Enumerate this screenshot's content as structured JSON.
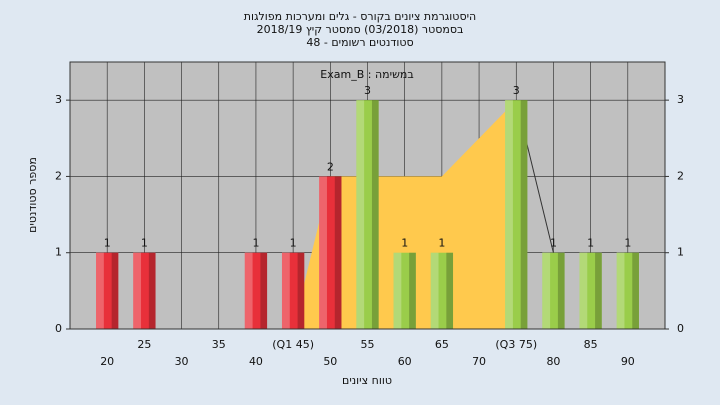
{
  "chart_data": {
    "type": "bar",
    "title_lines": [
      "היסטוגרמת ציונים בקורס - גלים ומערכות מפולגות",
      "בסמסטר (03/2018) סמסטר קיץ 2018/19",
      "סטודנטים רשומים - 48"
    ],
    "annotation": "במשימה : Exam_B",
    "xlabel": "טווח ציונים",
    "ylabel": "מספר סטודנטים",
    "x": [
      20,
      25,
      30,
      35,
      40,
      45,
      50,
      55,
      60,
      65,
      70,
      75,
      80,
      85,
      90
    ],
    "values": [
      1,
      1,
      0,
      0,
      1,
      1,
      2,
      3,
      1,
      1,
      0,
      3,
      1,
      1,
      1
    ],
    "colors": [
      "#e8303a",
      "#e8303a",
      "#e8303a",
      "#e8303a",
      "#e8303a",
      "#e8303a",
      "#e8303a",
      "#9acd4a",
      "#9acd4a",
      "#9acd4a",
      "#9acd4a",
      "#9acd4a",
      "#9acd4a",
      "#9acd4a",
      "#9acd4a"
    ],
    "overlays": [
      {
        "type": "area",
        "color": "#ffc94d",
        "x": [
          45,
          50,
          65,
          75
        ],
        "values": [
          0,
          2,
          2,
          3
        ]
      },
      {
        "type": "line",
        "color": "#333333",
        "x": [
          75,
          80
        ],
        "values": [
          3,
          1
        ]
      }
    ],
    "xlim": [
      15,
      95
    ],
    "xticks": [
      20,
      25,
      30,
      35,
      40,
      {
        "value": 45,
        "label": "(Q1 45)"
      },
      50,
      55,
      60,
      65,
      70,
      {
        "value": 75,
        "label": "(Q3 75)"
      },
      80,
      85,
      90
    ],
    "ylim": [
      0,
      3.5
    ],
    "yticks": [
      0,
      1,
      2,
      3
    ],
    "grid": true
  }
}
